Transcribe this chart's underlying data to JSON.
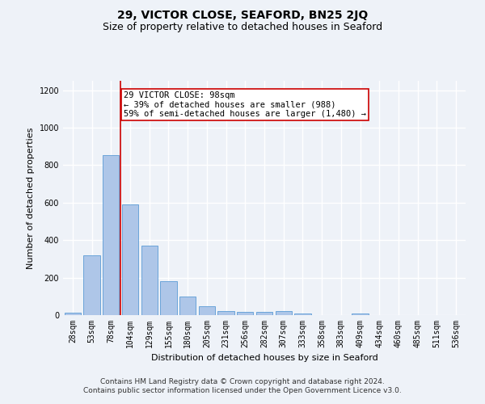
{
  "title": "29, VICTOR CLOSE, SEAFORD, BN25 2JQ",
  "subtitle": "Size of property relative to detached houses in Seaford",
  "xlabel": "Distribution of detached houses by size in Seaford",
  "ylabel": "Number of detached properties",
  "categories": [
    "28sqm",
    "53sqm",
    "78sqm",
    "104sqm",
    "129sqm",
    "155sqm",
    "180sqm",
    "205sqm",
    "231sqm",
    "256sqm",
    "282sqm",
    "307sqm",
    "333sqm",
    "358sqm",
    "383sqm",
    "409sqm",
    "434sqm",
    "460sqm",
    "485sqm",
    "511sqm",
    "536sqm"
  ],
  "values": [
    15,
    320,
    855,
    590,
    370,
    180,
    100,
    47,
    20,
    17,
    17,
    20,
    10,
    0,
    0,
    10,
    0,
    0,
    0,
    0,
    0
  ],
  "bar_color": "#aec6e8",
  "bar_edgecolor": "#5b9bd5",
  "vline_color": "#cc0000",
  "annotation_text": "29 VICTOR CLOSE: 98sqm\n← 39% of detached houses are smaller (988)\n59% of semi-detached houses are larger (1,480) →",
  "annotation_box_edgecolor": "#cc0000",
  "annotation_box_facecolor": "#ffffff",
  "ylim": [
    0,
    1250
  ],
  "yticks": [
    0,
    200,
    400,
    600,
    800,
    1000,
    1200
  ],
  "footer_line1": "Contains HM Land Registry data © Crown copyright and database right 2024.",
  "footer_line2": "Contains public sector information licensed under the Open Government Licence v3.0.",
  "bg_color": "#eef2f8",
  "plot_bg_color": "#eef2f8",
  "grid_color": "#ffffff",
  "title_fontsize": 10,
  "subtitle_fontsize": 9,
  "axis_label_fontsize": 8,
  "tick_fontsize": 7,
  "annotation_fontsize": 7.5,
  "footer_fontsize": 6.5
}
